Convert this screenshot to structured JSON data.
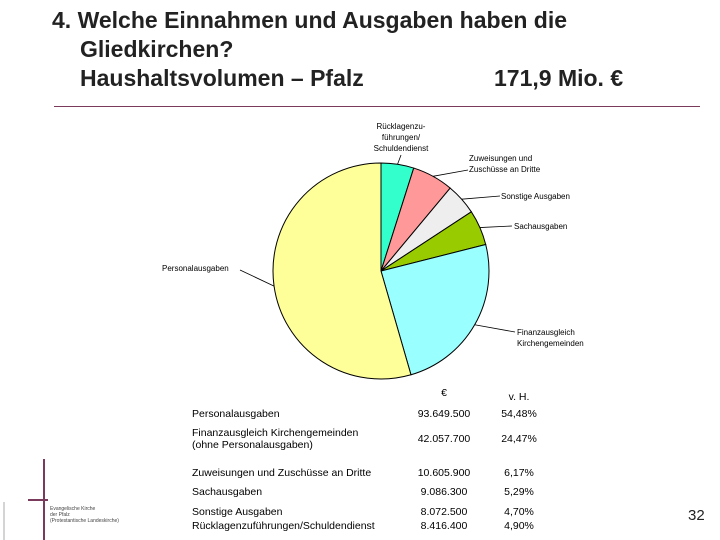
{
  "title": {
    "line1": "4. Welche Einnahmen und Ausgaben haben die",
    "line2": "Gliedkirchen?",
    "line3": "Haushaltsvolumen – Pfalz",
    "volume": "171,9 Mio. €"
  },
  "chart_data": {
    "type": "pie",
    "slices": [
      {
        "label": "Rücklagenzuführungen/Schuldendienst",
        "value": 4.9,
        "color": "#33ffcc"
      },
      {
        "label": "Zuweisungen und Zuschüsse an Dritte",
        "value": 6.17,
        "color": "#ff9999"
      },
      {
        "label": "Sonstige Ausgaben",
        "value": 4.7,
        "color": "#eeeeee"
      },
      {
        "label": "Sachausgaben",
        "value": 5.29,
        "color": "#99cc00"
      },
      {
        "label": "Finanzausgleich Kirchengemeinden",
        "value": 24.47,
        "color": "#99ffff"
      },
      {
        "label": "Personalausgaben",
        "value": 54.48,
        "color": "#ffff99"
      }
    ],
    "callouts": {
      "ruecklagen": [
        "Rücklagenzu-",
        "führungen/",
        "Schuldendienst"
      ],
      "zuweisungen": [
        "Zuweisungen und",
        "Zuschüsse an Dritte"
      ],
      "sonstige": [
        "Sonstige Ausgaben"
      ],
      "sach": [
        "Sachausgaben"
      ],
      "finanz": [
        "Finanzausgleich",
        "Kirchengemeinden"
      ],
      "personal": [
        "Personalausgaben"
      ]
    }
  },
  "table": {
    "col_euro": "€",
    "col_pct": "v. H.",
    "rows": [
      {
        "label": "Personalausgaben",
        "euro": "93.649.500",
        "pct": "54,48%"
      },
      {
        "label": "Finanzausgleich Kirchengemeinden",
        "label2": "(ohne Personalausgaben)",
        "euro": "42.057.700",
        "pct": "24,47%"
      },
      {
        "label": "Zuweisungen und Zuschüsse an Dritte",
        "euro": "10.605.900",
        "pct": "6,17%"
      },
      {
        "label": "Sachausgaben",
        "euro": "9.086.300",
        "pct": "5,29%"
      },
      {
        "label": "Sonstige Ausgaben",
        "euro": "8.072.500",
        "pct": "4,70%"
      },
      {
        "label": "Rücklagenzuführungen/Schuldendienst",
        "euro": "8.416.400",
        "pct": "4,90%"
      }
    ]
  },
  "logo_text": [
    "Evangelische Kirche",
    "der Pfalz",
    "(Protestantische Landeskirche)"
  ],
  "page_number": "32",
  "colors": {
    "accent": "#7a3a5c"
  }
}
